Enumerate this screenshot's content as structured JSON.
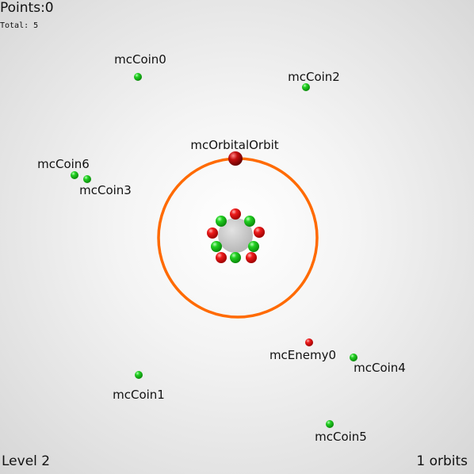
{
  "hud": {
    "points_label": "Points:",
    "points_value": "0",
    "total_label": "Total:",
    "total_value": "5",
    "level_text": "Level 2",
    "orbits_text": "1 orbits"
  },
  "objects": {
    "orbital_label": "mcOrbitalOrbit",
    "enemy_label": "mcEnemy0",
    "coins": [
      {
        "label": "mcCoin0"
      },
      {
        "label": "mcCoin1"
      },
      {
        "label": "mcCoin2"
      },
      {
        "label": "mcCoin3"
      },
      {
        "label": "mcCoin4"
      },
      {
        "label": "mcCoin5"
      },
      {
        "label": "mcCoin6"
      }
    ]
  },
  "colors": {
    "orbit_ring": "#ff6a00",
    "coin": "#22cc22",
    "enemy": "#e00000",
    "orbital": "#c00000",
    "core": "#c8c8c8"
  }
}
